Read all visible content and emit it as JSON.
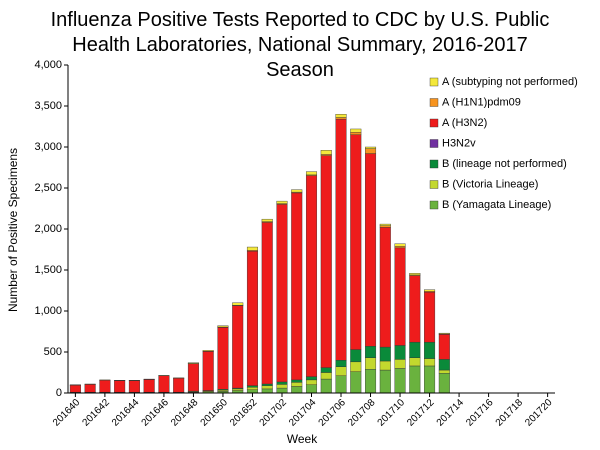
{
  "chart_data": {
    "type": "stacked-bar",
    "title": "Influenza Positive Tests Reported to CDC by U.S. Public Health Laboratories, National Summary, 2016-2017 Season",
    "x_label": "Week",
    "y_label": "Number of Positive Specimens",
    "categories": [
      "201640",
      null,
      "201642",
      null,
      "201644",
      null,
      "201646",
      null,
      "201648",
      null,
      "201650",
      null,
      "201652",
      null,
      "201702",
      null,
      "201704",
      null,
      "201706",
      null,
      "201708",
      null,
      "201710",
      null,
      "201712",
      null,
      "201714",
      null,
      "201716",
      null,
      "201718",
      null,
      "201720"
    ],
    "ylim": [
      0,
      4000
    ],
    "yticks": [
      0,
      500,
      {
        "value": 1000,
        "label": "1,000"
      },
      {
        "value": 1500,
        "label": "1,500"
      },
      {
        "value": 2000,
        "label": "2,000"
      },
      {
        "value": 2500,
        "label": "2,500"
      },
      {
        "value": 3000,
        "label": "3,000"
      },
      {
        "value": 3500,
        "label": "3,500"
      },
      {
        "value": 4000,
        "label": "4,000"
      }
    ],
    "legend_position": "top-right",
    "series": [
      {
        "name": "A (subtyping not performed)",
        "color": "#f4e83a",
        "values": [
          3,
          3,
          3,
          3,
          3,
          3,
          3,
          3,
          10,
          10,
          15,
          30,
          40,
          30,
          30,
          30,
          40,
          50,
          40,
          40,
          20,
          20,
          30,
          20,
          20,
          10,
          null,
          null,
          null,
          null,
          null,
          null,
          null
        ]
      },
      {
        "name": "A (H1N1)pdm09",
        "color": "#f7931e",
        "values": [
          2,
          2,
          2,
          2,
          2,
          2,
          2,
          2,
          3,
          3,
          5,
          5,
          10,
          10,
          10,
          10,
          10,
          15,
          20,
          30,
          60,
          20,
          20,
          10,
          10,
          5,
          null,
          null,
          null,
          null,
          null,
          null,
          null
        ]
      },
      {
        "name": "A (H3N2)",
        "color": "#ee1c1c",
        "values": [
          85,
          95,
          145,
          140,
          140,
          155,
          200,
          170,
          334,
          477,
          755,
          1005,
          1640,
          1970,
          2165,
          2280,
          2450,
          2585,
          2940,
          2620,
          2350,
          1460,
          1190,
          810,
          610,
          305,
          null,
          null,
          null,
          null,
          null,
          null,
          null
        ]
      },
      {
        "name": "H3N2v",
        "color": "#7030a0",
        "values": [
          0,
          0,
          0,
          0,
          0,
          0,
          0,
          0,
          0,
          0,
          0,
          0,
          0,
          0,
          0,
          0,
          0,
          0,
          0,
          0,
          0,
          0,
          0,
          0,
          0,
          0,
          null,
          null,
          null,
          null,
          null,
          null,
          null
        ]
      },
      {
        "name": "B (lineage not performed)",
        "color": "#0a8a3a",
        "values": [
          2,
          2,
          2,
          2,
          2,
          2,
          2,
          2,
          5,
          5,
          10,
          10,
          20,
          20,
          30,
          30,
          40,
          60,
          80,
          150,
          140,
          170,
          170,
          190,
          200,
          130,
          null,
          null,
          null,
          null,
          null,
          null,
          null
        ]
      },
      {
        "name": "B (Victoria Lineage)",
        "color": "#c3d82e",
        "values": [
          3,
          3,
          3,
          3,
          3,
          3,
          3,
          3,
          8,
          10,
          15,
          20,
          30,
          40,
          45,
          50,
          60,
          80,
          110,
          120,
          140,
          110,
          110,
          100,
          90,
          40,
          null,
          null,
          null,
          null,
          null,
          null,
          null
        ]
      },
      {
        "name": "B (Yamagata Lineage)",
        "color": "#6ab23e",
        "values": [
          5,
          5,
          5,
          5,
          5,
          5,
          5,
          5,
          10,
          15,
          20,
          30,
          40,
          50,
          60,
          80,
          100,
          170,
          210,
          260,
          290,
          280,
          300,
          330,
          330,
          240,
          null,
          null,
          null,
          null,
          null,
          null,
          null
        ]
      }
    ]
  }
}
